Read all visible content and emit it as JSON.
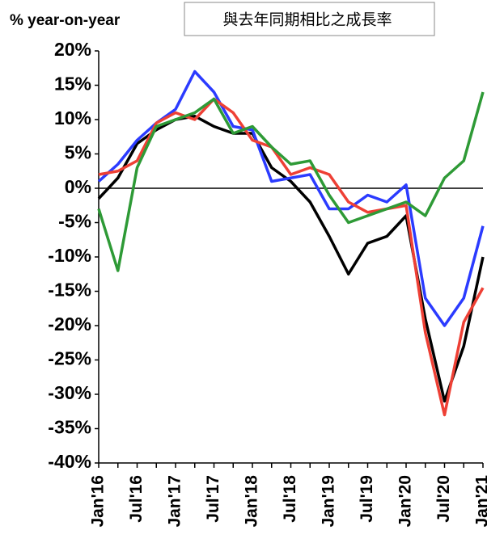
{
  "chart_data": {
    "type": "line",
    "title": "與去年同期相比之成長率",
    "y_label": "% year-on-year",
    "categories": [
      "Jan'16",
      null,
      "Jul'16",
      null,
      "Jan'17",
      null,
      "Jul'17",
      null,
      "Jan'18",
      null,
      "Jul'18",
      null,
      "Jan'19",
      null,
      "Jul'19",
      null,
      "Jan'20",
      null,
      "Jul'20",
      null,
      "Jan'21"
    ],
    "series": [
      {
        "color": "#000000",
        "values": [
          -1.5,
          1.5,
          6.5,
          8.5,
          10,
          10.5,
          9,
          8,
          8,
          3,
          1,
          -2,
          -7,
          -12.5,
          -8,
          -7,
          -4,
          -19,
          -31,
          -23,
          -10
        ]
      },
      {
        "color": "#2b3bff",
        "values": [
          1,
          3.5,
          7,
          9.5,
          11.5,
          17,
          14,
          9,
          8.5,
          1,
          1.5,
          2,
          -3,
          -3,
          -1,
          -2,
          0.5,
          -16,
          -20,
          -16,
          -5.5
        ]
      },
      {
        "color": "#ee4035",
        "values": [
          2,
          2.5,
          4,
          9.5,
          11,
          10,
          13,
          11,
          7,
          6,
          2,
          3,
          2,
          -2,
          -3.5,
          -3,
          -2.5,
          -21,
          -33,
          -19.5,
          -14.5
        ]
      },
      {
        "color": "#2e9a36",
        "values": [
          -3,
          -12,
          3,
          9,
          10,
          11,
          13,
          8,
          9,
          6,
          3.5,
          4,
          -1,
          -5,
          -4,
          -3,
          -2,
          -4,
          1.5,
          4,
          14
        ]
      }
    ],
    "ylim": [
      -40,
      20
    ],
    "yticks": [
      {
        "value": 20,
        "label": "20%"
      },
      {
        "value": 15,
        "label": "15%"
      },
      {
        "value": 10,
        "label": "10%"
      },
      {
        "value": 5,
        "label": "5%"
      },
      {
        "value": 0,
        "label": "0%"
      },
      {
        "value": -5,
        "label": "-5%"
      },
      {
        "value": -10,
        "label": "-10%"
      },
      {
        "value": -15,
        "label": "-15%"
      },
      {
        "value": -20,
        "label": "-20%"
      },
      {
        "value": -25,
        "label": "-25%"
      },
      {
        "value": -30,
        "label": "-30%"
      },
      {
        "value": -35,
        "label": "-35%"
      },
      {
        "value": -40,
        "label": "-40%"
      }
    ],
    "grid": false
  }
}
